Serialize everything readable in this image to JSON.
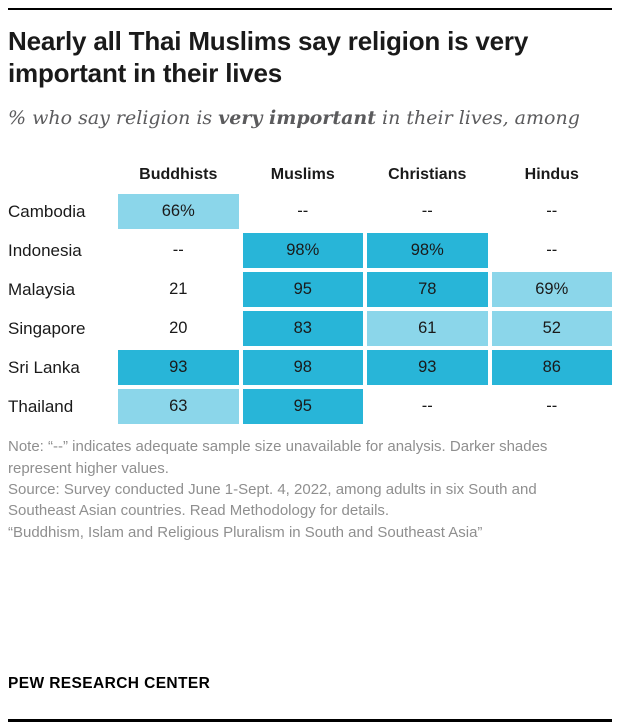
{
  "header": {
    "title": "Nearly all Thai Muslims say religion is very important in their lives",
    "subtitle_prefix": "% who say religion is ",
    "subtitle_bold": "very important",
    "subtitle_suffix": " in their lives, among"
  },
  "table": {
    "columns": [
      "Buddhists",
      "Muslims",
      "Christians",
      "Hindus"
    ],
    "rows": [
      {
        "label": "Cambodia",
        "display": [
          "66%",
          "--",
          "--",
          "--"
        ],
        "shades": [
          "light",
          "none",
          "none",
          "none"
        ]
      },
      {
        "label": "Indonesia",
        "display": [
          "--",
          "98%",
          "98%",
          "--"
        ],
        "shades": [
          "none",
          "dark",
          "dark",
          "none"
        ]
      },
      {
        "label": "Malaysia",
        "display": [
          "21",
          "95",
          "78",
          "69%"
        ],
        "shades": [
          "none",
          "dark",
          "dark",
          "light"
        ]
      },
      {
        "label": "Singapore",
        "display": [
          "20",
          "83",
          "61",
          "52"
        ],
        "shades": [
          "none",
          "dark",
          "light",
          "light"
        ]
      },
      {
        "label": "Sri Lanka",
        "display": [
          "93",
          "98",
          "93",
          "86"
        ],
        "shades": [
          "dark",
          "dark",
          "dark",
          "dark"
        ]
      },
      {
        "label": "Thailand",
        "display": [
          "63",
          "95",
          "--",
          "--"
        ],
        "shades": [
          "light",
          "dark",
          "none",
          "none"
        ]
      }
    ]
  },
  "chart_data": {
    "type": "heatmap",
    "title": "Nearly all Thai Muslims say religion is very important in their lives",
    "subtitle": "% who say religion is very important in their lives, among",
    "columns": [
      "Buddhists",
      "Muslims",
      "Christians",
      "Hindus"
    ],
    "rows": [
      "Cambodia",
      "Indonesia",
      "Malaysia",
      "Singapore",
      "Sri Lanka",
      "Thailand"
    ],
    "values": [
      [
        66,
        null,
        null,
        null
      ],
      [
        null,
        98,
        98,
        null
      ],
      [
        21,
        95,
        78,
        69
      ],
      [
        20,
        83,
        61,
        52
      ],
      [
        93,
        98,
        93,
        86
      ],
      [
        63,
        95,
        null,
        null
      ]
    ],
    "unit": "%",
    "missing_marker": "--",
    "shading_note": "Darker shades represent higher values"
  },
  "notes": {
    "note": "Note: “--” indicates adequate sample size unavailable for analysis. Darker shades represent higher values.",
    "source": "Source: Survey conducted June 1-Sept. 4, 2022, among adults in six South and Southeast Asian countries. Read Methodology for details.",
    "citation": "“Buddhism, Islam and Religious Pluralism in South and Southeast Asia”"
  },
  "footer": {
    "brand": "PEW RESEARCH CENTER"
  },
  "colors": {
    "dark_cell": "#28b5d8",
    "light_cell": "#8bd6ea",
    "subtitle": "#5b5b5d",
    "note": "#8f8f8f"
  }
}
